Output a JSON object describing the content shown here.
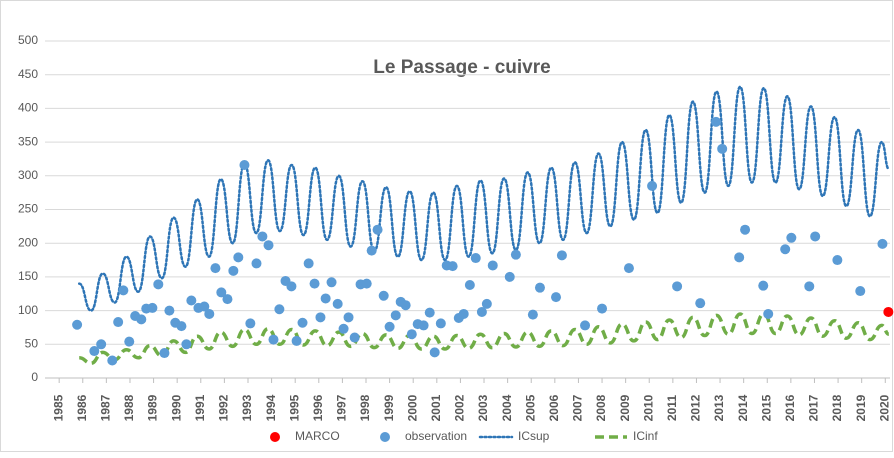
{
  "chart_data": {
    "type": "scatter",
    "title": "Le Passage - cuivre",
    "xlim": [
      1984.4,
      2020.2
    ],
    "ylim": [
      0,
      500
    ],
    "yticks": [
      0,
      50,
      100,
      150,
      200,
      250,
      300,
      350,
      400,
      450,
      500
    ],
    "xticks": [
      1985,
      1986,
      1987,
      1988,
      1989,
      1990,
      1991,
      1992,
      1993,
      1994,
      1995,
      1996,
      1997,
      1998,
      1999,
      2000,
      2001,
      2002,
      2003,
      2004,
      2005,
      2006,
      2007,
      2008,
      2009,
      2010,
      2011,
      2012,
      2013,
      2014,
      2015,
      2016,
      2017,
      2018,
      2019,
      2020
    ],
    "grid": true,
    "legend": "bottom",
    "x": [
      1985.85,
      1986.35,
      1986.85,
      1987.35,
      1987.85,
      1988.35,
      1988.85,
      1989.35,
      1989.85,
      1990.35,
      1990.85,
      1991.35,
      1991.85,
      1992.35,
      1992.85,
      1993.35,
      1993.85,
      1994.35,
      1994.85,
      1995.35,
      1995.85,
      1996.35,
      1996.85,
      1997.35,
      1997.85,
      1998.35,
      1998.85,
      1999.35,
      1999.85,
      2000.35,
      2000.85,
      2001.35,
      2001.85,
      2002.35,
      2002.85,
      2003.35,
      2003.85,
      2004.35,
      2004.85,
      2005.35,
      2005.85,
      2006.35,
      2006.85,
      2007.35,
      2007.85,
      2008.35,
      2008.85,
      2009.35,
      2009.85,
      2010.35,
      2010.85,
      2011.35,
      2011.85,
      2012.35,
      2012.85,
      2013.35,
      2013.85,
      2014.35,
      2014.85,
      2015.35,
      2015.85,
      2016.35,
      2016.85,
      2017.35,
      2017.85,
      2018.35,
      2018.85,
      2019.35,
      2019.85,
      2020.15
    ],
    "series": [
      {
        "name": "MARCO",
        "type": "scatter",
        "color": "#ff0000",
        "x": [
          2020.13
        ],
        "values": [
          98
        ]
      },
      {
        "name": "observation",
        "type": "scatter",
        "color": "#5b9bd5",
        "x": [
          1985.76,
          1986.49,
          1986.78,
          1987.25,
          1987.5,
          1987.72,
          1987.97,
          1988.22,
          1988.48,
          1988.69,
          1988.95,
          1989.2,
          1989.46,
          1989.67,
          1989.92,
          1990.18,
          1990.39,
          1990.6,
          1990.9,
          1991.15,
          1991.36,
          1991.62,
          1991.87,
          1992.13,
          1992.38,
          1992.59,
          1992.85,
          1993.1,
          1993.36,
          1993.61,
          1993.87,
          1994.08,
          1994.33,
          1994.59,
          1994.84,
          1995.06,
          1995.31,
          1995.57,
          1995.82,
          1996.07,
          1996.29,
          1996.54,
          1996.8,
          1997.05,
          1997.26,
          1997.52,
          1997.77,
          1998.03,
          1998.24,
          1998.49,
          1998.75,
          1999.0,
          1999.26,
          1999.47,
          1999.68,
          1999.94,
          2000.19,
          2000.44,
          2000.7,
          2000.91,
          2001.17,
          2001.42,
          2001.67,
          2001.93,
          2002.14,
          2002.4,
          2002.65,
          2002.91,
          2003.12,
          2003.37,
          2004.09,
          2004.35,
          2005.07,
          2005.37,
          2006.05,
          2006.3,
          2007.28,
          2008.0,
          2009.14,
          2010.12,
          2011.18,
          2012.16,
          2012.83,
          2013.09,
          2013.81,
          2014.06,
          2014.83,
          2015.04,
          2015.76,
          2016.02,
          2016.78,
          2017.03,
          2017.97,
          2018.94,
          2019.88
        ],
        "values": [
          79,
          40,
          50,
          26,
          83,
          130,
          54,
          92,
          87,
          103,
          104,
          139,
          37,
          100,
          82,
          77,
          50,
          115,
          104,
          106,
          95,
          163,
          127,
          117,
          159,
          179,
          316,
          81,
          170,
          210,
          197,
          57,
          102,
          144,
          136,
          55,
          82,
          170,
          140,
          90,
          118,
          142,
          110,
          73,
          90,
          60,
          139,
          140,
          189,
          220,
          122,
          76,
          93,
          113,
          108,
          65,
          80,
          78,
          97,
          38,
          81,
          167,
          166,
          89,
          95,
          138,
          178,
          98,
          110,
          167,
          150,
          183,
          94,
          134,
          120,
          182,
          78,
          103,
          163,
          285,
          136,
          111,
          380,
          340,
          179,
          220,
          137,
          95,
          191,
          208,
          136,
          210,
          175,
          129,
          199
        ]
      },
      {
        "name": "ICsup",
        "type": "line",
        "style": "dotted",
        "color": "#2e75b6",
        "values": [
          140,
          100,
          155,
          112,
          180,
          128,
          210,
          148,
          238,
          165,
          265,
          180,
          295,
          200,
          318,
          215,
          323,
          218,
          316,
          212,
          312,
          205,
          300,
          195,
          292,
          188,
          283,
          180,
          277,
          175,
          275,
          175,
          285,
          180,
          293,
          185,
          296,
          190,
          305,
          200,
          312,
          205,
          320,
          215,
          333,
          225,
          350,
          235,
          368,
          245,
          390,
          260,
          410,
          275,
          425,
          285,
          432,
          290,
          430,
          290,
          418,
          280,
          403,
          270,
          387,
          255,
          368,
          240,
          350,
          310
        ]
      },
      {
        "name": "ICinf",
        "type": "line",
        "style": "dashed",
        "color": "#70ad47",
        "values": [
          30,
          22,
          38,
          27,
          42,
          30,
          48,
          33,
          55,
          38,
          62,
          43,
          68,
          47,
          72,
          50,
          73,
          50,
          72,
          49,
          70,
          48,
          68,
          47,
          66,
          45,
          64,
          44,
          63,
          43,
          62,
          43,
          63,
          44,
          65,
          45,
          66,
          46,
          68,
          47,
          70,
          48,
          72,
          50,
          76,
          52,
          80,
          55,
          83,
          57,
          86,
          60,
          90,
          63,
          93,
          65,
          95,
          66,
          95,
          66,
          92,
          64,
          89,
          62,
          85,
          59,
          82,
          57,
          78,
          65
        ]
      }
    ]
  }
}
